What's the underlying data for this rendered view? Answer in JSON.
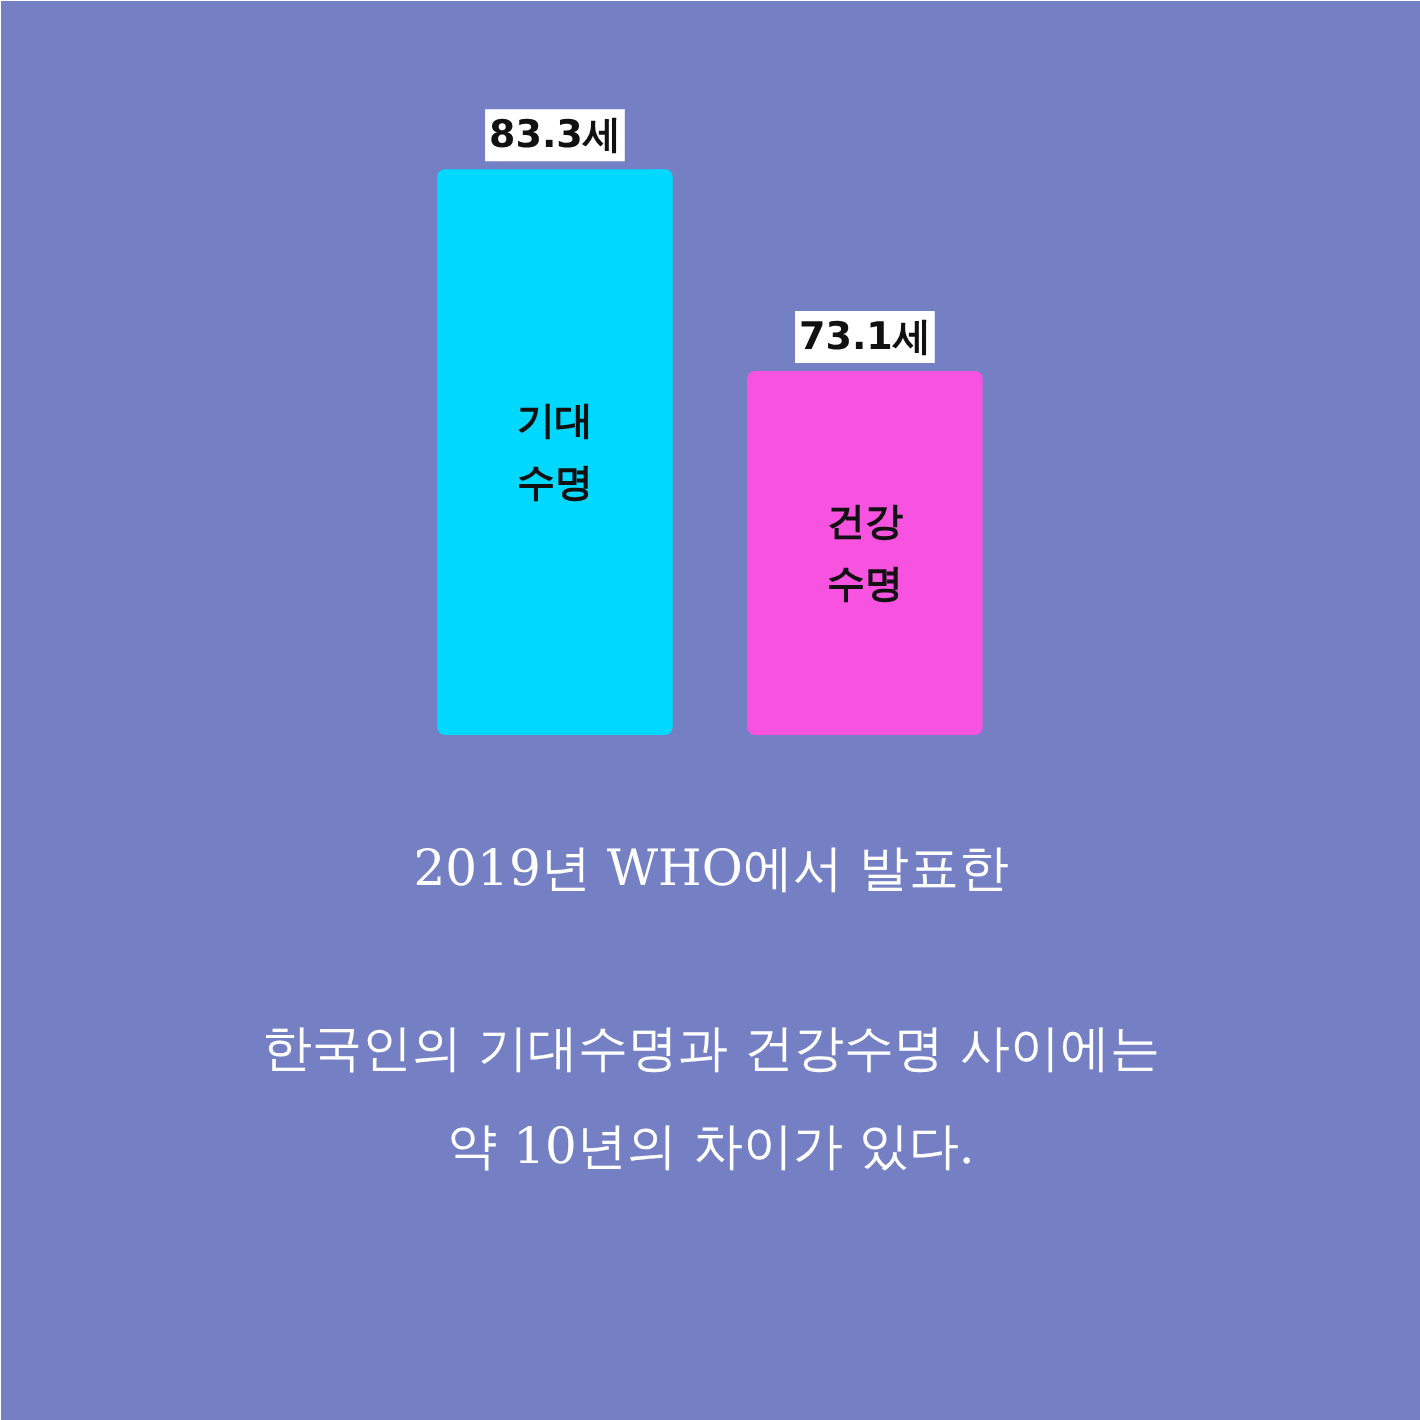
{
  "chart_data": {
    "type": "bar",
    "title": "2019년 WHO에서 발표한\n한국인의 기대수명과 건강수명 사이에는\n약 10년의 차이가 있다.",
    "categories": [
      "기대\n수명",
      "건강\n수명"
    ],
    "values": [
      83.3,
      73.1
    ],
    "colors": [
      "#00d8ff",
      "#f752e0"
    ],
    "value_labels": [
      "83.3세",
      "73.1세"
    ],
    "ylim": [
      54.7,
      91.8
    ],
    "tick_labels": false,
    "grid": false
  }
}
